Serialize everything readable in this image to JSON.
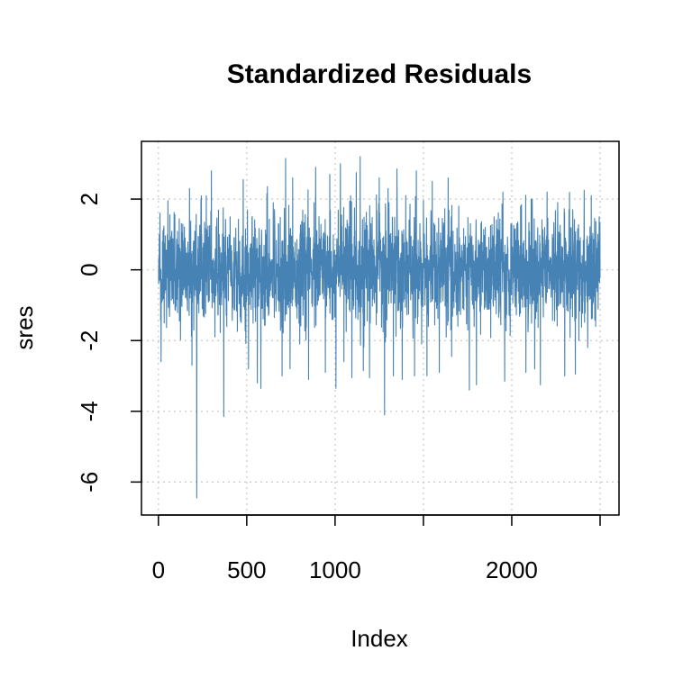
{
  "chart_data": {
    "type": "line",
    "title": "Standardized Residuals",
    "xlabel": "Index",
    "ylabel": "sres",
    "xlim": [
      1,
      2500
    ],
    "ylim": [
      -6.5,
      3.25
    ],
    "x_ticks": [
      0,
      500,
      1000,
      1500,
      2000,
      2500
    ],
    "x_tick_labels": [
      "0",
      "500",
      "1000",
      "",
      "2000",
      ""
    ],
    "y_ticks": [
      -6,
      -4,
      -2,
      0,
      2
    ],
    "y_tick_labels": [
      "-6",
      "-4",
      "-2",
      "0",
      "2"
    ],
    "grid": true,
    "grid_style": "dotted",
    "series": [
      {
        "color": "#4682b4",
        "n": 2500,
        "x": [
          3,
          9,
          15,
          190,
          217,
          245,
          300,
          320,
          370,
          387,
          480,
          510,
          560,
          580,
          617,
          650,
          700,
          720,
          745,
          760,
          800,
          850,
          890,
          945,
          970,
          1005,
          1030,
          1050,
          1095,
          1120,
          1142,
          1160,
          1195,
          1250,
          1280,
          1300,
          1330,
          1350,
          1380,
          1400,
          1450,
          1460,
          1490,
          1520,
          1550,
          1590,
          1640,
          1660,
          1700,
          1760,
          1800,
          1850,
          1900,
          1950,
          1960,
          2000,
          2050,
          2080,
          2110,
          2130,
          2162,
          2200,
          2260,
          2300,
          2345,
          2360,
          2380,
          2410,
          2430,
          2450,
          2475,
          2495
        ],
        "y": [
          -0.3,
          1.6,
          -2.6,
          -2.7,
          -6.45,
          1.0,
          2.8,
          -1.9,
          -4.15,
          -1.6,
          2.55,
          -2.8,
          -3.2,
          -3.35,
          2.35,
          1.9,
          -3.0,
          3.15,
          -2.8,
          2.6,
          -2.1,
          -3.1,
          2.9,
          -2.9,
          2.7,
          -3.35,
          3.0,
          -2.6,
          -3.05,
          2.75,
          3.2,
          -2.85,
          -3.05,
          2.6,
          -4.1,
          2.3,
          -3.0,
          2.85,
          -3.1,
          2.1,
          -3.0,
          2.8,
          -2.1,
          -3.0,
          2.5,
          -2.9,
          2.6,
          -2.45,
          1.8,
          -3.4,
          -3.25,
          1.2,
          1.5,
          2.2,
          -3.15,
          1.3,
          1.8,
          -2.9,
          2.0,
          -2.8,
          -3.25,
          2.2,
          1.9,
          -3.0,
          1.7,
          -2.95,
          -2.0,
          2.25,
          -2.2,
          2.1,
          -1.6,
          1.5
        ],
        "noise_sd": 0.75,
        "seed": 20240
      }
    ]
  }
}
